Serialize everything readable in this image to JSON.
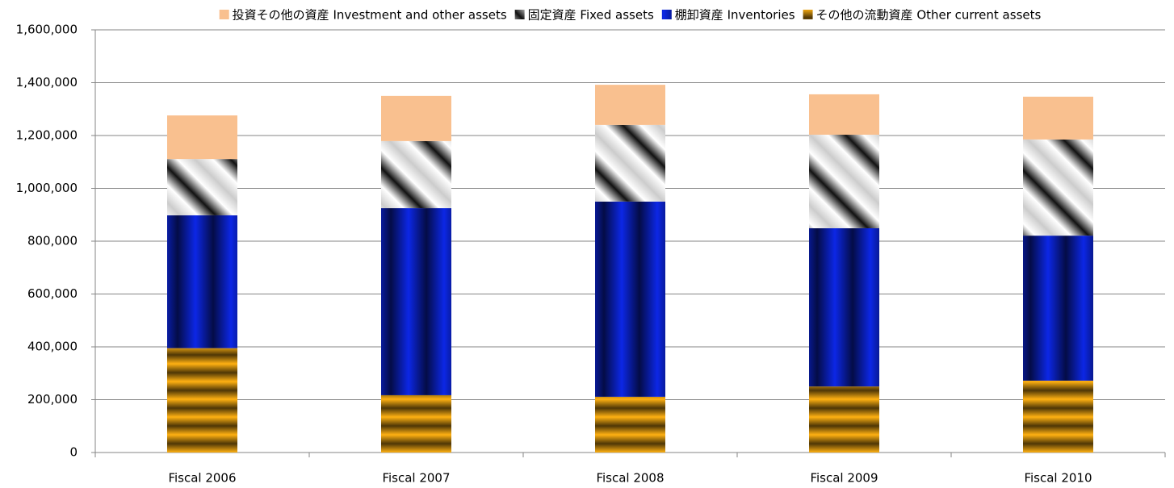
{
  "chart_data": {
    "type": "stacked-bar",
    "categories": [
      "Fiscal 2006",
      "Fiscal 2007",
      "Fiscal 2008",
      "Fiscal 2009",
      "Fiscal 2010"
    ],
    "series": [
      {
        "name": "投資その他の資産 Investment and other assets",
        "color": "#f9c08f",
        "values": [
          165000,
          171000,
          152000,
          153000,
          162000
        ]
      },
      {
        "name": "固定資産 Fixed assets",
        "color": "#9a9a9a",
        "values": [
          213000,
          254000,
          290000,
          354000,
          364000
        ]
      },
      {
        "name": "棚卸資産 Inventories",
        "color": "#0a22c8",
        "values": [
          503000,
          708000,
          739000,
          599000,
          549000
        ]
      },
      {
        "name": "その他の流動資産 Other current assets",
        "color": "#e09a10",
        "values": [
          395000,
          217000,
          211000,
          250000,
          272000
        ]
      }
    ],
    "ylim": [
      0,
      1600000
    ],
    "yticks": [
      0,
      {
        "value": 200000,
        "label": "200,000"
      },
      {
        "value": 400000,
        "label": "400,000"
      },
      {
        "value": 600000,
        "label": "600,000"
      },
      {
        "value": 800000,
        "label": "800,000"
      },
      {
        "value": 1000000,
        "label": "1,000,000"
      },
      {
        "value": 1200000,
        "label": "1,200,000"
      },
      {
        "value": 1400000,
        "label": "1,400,000"
      },
      {
        "value": 1600000,
        "label": "1,600,000"
      }
    ],
    "grid": true,
    "legend": "top"
  }
}
